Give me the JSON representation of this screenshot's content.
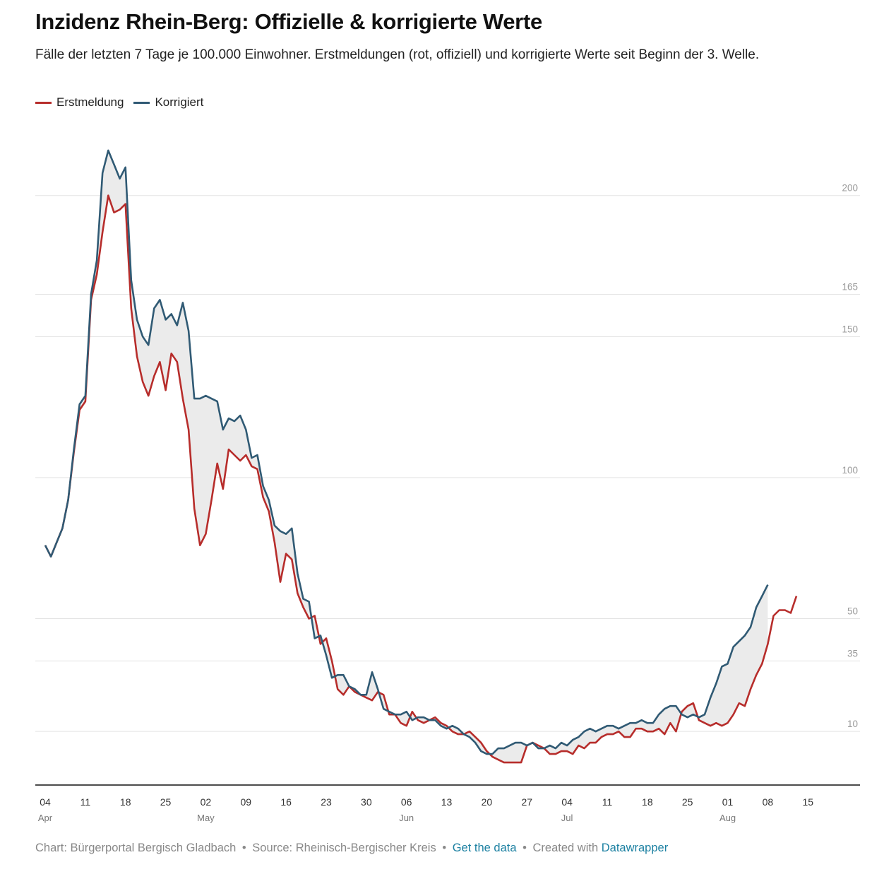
{
  "title": "Inzidenz Rhein-Berg: Offizielle & korrigierte Werte",
  "subtitle": "Fälle der letzten 7 Tage je 100.000 Einwohner. Erstmeldungen (rot, offiziell) und korrigierte Werte seit Beginn der 3. Welle.",
  "footer": {
    "chart_by": "Chart: Bürgerportal Bergisch Gladbach",
    "source": "Source: Rheinisch-Bergischer Kreis",
    "get_data": "Get the data",
    "created_with": "Created with",
    "datawrapper": "Datawrapper",
    "separator": "•"
  },
  "colors": {
    "erstmeldung": "#b72d2b",
    "korrigiert": "#305a74",
    "fill": "#ebebeb",
    "grid": "#e3e3e3",
    "axis": "#111111",
    "tick_label": "#9a9a9a"
  },
  "chart_data": {
    "type": "line",
    "title": "Inzidenz Rhein-Berg: Offizielle & korrigierte Werte",
    "subtitle": "Fälle der letzten 7 Tage je 100.000 Einwohner. Erstmeldungen (rot, offiziell) und korrigierte Werte seit Beginn der 3. Welle.",
    "xlabel": "",
    "ylabel": "",
    "x_start": "2021-04-04",
    "ylim": [
      -9,
      232
    ],
    "y_ticks": [
      10,
      35,
      50,
      100,
      150,
      165,
      200
    ],
    "x_ticks": [
      {
        "label": "04",
        "month": "Apr",
        "date": "2021-04-04"
      },
      {
        "label": "11",
        "month": "",
        "date": "2021-04-11"
      },
      {
        "label": "18",
        "month": "",
        "date": "2021-04-18"
      },
      {
        "label": "25",
        "month": "",
        "date": "2021-04-25"
      },
      {
        "label": "02",
        "month": "May",
        "date": "2021-05-02"
      },
      {
        "label": "09",
        "month": "",
        "date": "2021-05-09"
      },
      {
        "label": "16",
        "month": "",
        "date": "2021-05-16"
      },
      {
        "label": "23",
        "month": "",
        "date": "2021-05-23"
      },
      {
        "label": "30",
        "month": "",
        "date": "2021-05-30"
      },
      {
        "label": "06",
        "month": "Jun",
        "date": "2021-06-06"
      },
      {
        "label": "13",
        "month": "",
        "date": "2021-06-13"
      },
      {
        "label": "20",
        "month": "",
        "date": "2021-06-20"
      },
      {
        "label": "27",
        "month": "",
        "date": "2021-06-27"
      },
      {
        "label": "04",
        "month": "Jul",
        "date": "2021-07-04"
      },
      {
        "label": "11",
        "month": "",
        "date": "2021-07-11"
      },
      {
        "label": "18",
        "month": "",
        "date": "2021-07-18"
      },
      {
        "label": "25",
        "month": "",
        "date": "2021-07-25"
      },
      {
        "label": "01",
        "month": "Aug",
        "date": "2021-08-01"
      },
      {
        "label": "08",
        "month": "",
        "date": "2021-08-08"
      },
      {
        "label": "15",
        "month": "",
        "date": "2021-08-15"
      }
    ],
    "legend": {
      "position": "top-left"
    },
    "grid": true,
    "series": [
      {
        "name": "Erstmeldung",
        "color": "#b72d2b",
        "values": [
          76,
          72,
          77,
          82,
          92,
          109,
          124,
          127,
          163,
          172,
          187,
          200,
          194,
          195,
          197,
          160,
          143,
          134,
          129,
          136,
          141,
          131,
          144,
          141,
          128,
          117,
          89,
          76,
          80,
          92,
          105,
          96,
          110,
          108,
          106,
          108,
          104,
          103,
          93,
          88,
          77,
          63,
          73,
          71,
          59,
          54,
          50,
          51,
          41,
          43,
          35,
          25,
          23,
          26,
          24,
          23,
          22,
          21,
          24,
          23,
          16,
          16,
          13,
          12,
          17,
          14,
          13,
          14,
          15,
          13,
          12,
          10,
          9,
          9,
          10,
          8,
          6,
          3,
          1,
          0,
          -1,
          -1,
          -1,
          -1,
          5,
          6,
          5,
          4,
          2,
          2,
          3,
          3,
          2,
          5,
          4,
          6,
          6,
          8,
          9,
          9,
          10,
          8,
          8,
          11,
          11,
          10,
          10,
          11,
          9,
          13,
          10,
          17,
          19,
          20,
          14,
          13,
          12,
          13,
          12,
          13,
          16,
          20,
          19,
          25,
          30,
          34,
          41,
          51,
          53,
          53,
          52,
          58
        ]
      },
      {
        "name": "Korrigiert",
        "color": "#305a74",
        "values": [
          76,
          72,
          77,
          82,
          92,
          110,
          126,
          129,
          165,
          177,
          208,
          216,
          211,
          206,
          210,
          170,
          156,
          150,
          147,
          160,
          163,
          156,
          158,
          154,
          162,
          152,
          128,
          128,
          129,
          128,
          127,
          117,
          121,
          120,
          122,
          117,
          107,
          108,
          97,
          92,
          83,
          81,
          80,
          82,
          66,
          57,
          56,
          43,
          44,
          37,
          29,
          30,
          30,
          26,
          25,
          23,
          23,
          31,
          25,
          18,
          17,
          16,
          16,
          17,
          14,
          15,
          15,
          14,
          14,
          12,
          11,
          12,
          11,
          9,
          8,
          6,
          3,
          2,
          2,
          4,
          4,
          5,
          6,
          6,
          5,
          6,
          4,
          4,
          5,
          4,
          6,
          5,
          7,
          8,
          10,
          11,
          10,
          11,
          12,
          12,
          11,
          12,
          13,
          13,
          14,
          13,
          13,
          16,
          18,
          19,
          19,
          16,
          15,
          16,
          15,
          16,
          22,
          27,
          33,
          34,
          40,
          42,
          44,
          47,
          54,
          58,
          62
        ]
      }
    ]
  }
}
